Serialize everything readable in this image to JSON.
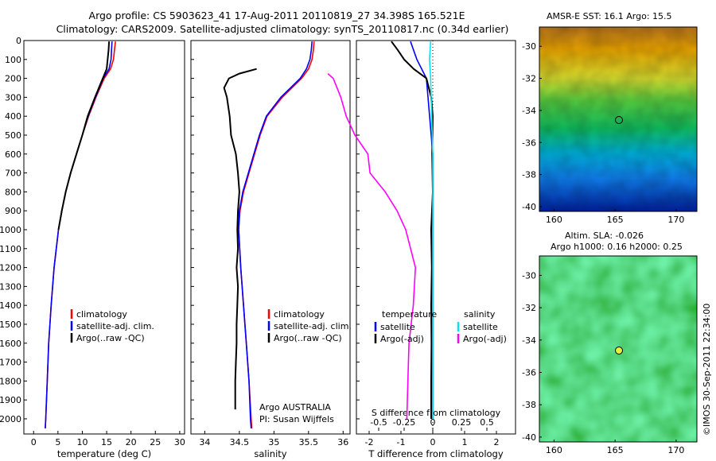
{
  "titles": {
    "line1": "Argo profile: CS 5903623_41 17-Aug-2011 20110819_27 34.398S 165.521E",
    "line2": "Climatology: CARS2009. Satellite-adjusted climatology: synTS_20110817.nc (0.34d earlier)"
  },
  "maps": {
    "sst_title": "AMSR-E SST: 16.1 Argo: 15.5",
    "sla_title1": "Altim. SLA: -0.026",
    "sla_title2": "Argo h1000: 0.16 h2000: 0.25",
    "yticks": [
      "-30",
      "-32",
      "-34",
      "-36",
      "-38",
      "-40"
    ],
    "xticks": [
      "160",
      "165",
      "170"
    ],
    "argo_lon": 165.521,
    "argo_lat": -34.398
  },
  "stamp": "©IMOS 30-Sep-2011 22:34:00",
  "annotations": {
    "float_owner": "Argo AUSTRALIA",
    "pi": "PI: Susan Wijffels",
    "s_diff_label": "S difference from climatology",
    "temperature_header": "temperature",
    "salinity_header": "salinity"
  },
  "chart_data": [
    {
      "type": "line",
      "xlabel": "temperature (deg C)",
      "ylabel": "",
      "xlim": [
        -2,
        31
      ],
      "ylim": [
        2080,
        0
      ],
      "xticks": [
        "0",
        "5",
        "10",
        "15",
        "20",
        "25",
        "30"
      ],
      "yticks": [
        "0",
        "100",
        "200",
        "300",
        "400",
        "500",
        "600",
        "700",
        "800",
        "900",
        "1000",
        "1100",
        "1200",
        "1300",
        "1400",
        "1500",
        "1600",
        "1700",
        "1800",
        "1900",
        "2000"
      ],
      "legend": [
        "climatology",
        "satellite-adj. clim.",
        "Argo(..raw -QC)"
      ],
      "legend_position": "lower-right",
      "series": [
        {
          "name": "climatology",
          "color": "#ff0000",
          "depth": [
            5,
            50,
            100,
            150,
            200,
            300,
            400,
            500,
            600,
            700,
            800,
            900,
            1000,
            1200,
            1400,
            1600,
            1800,
            2000,
            2050
          ],
          "values": [
            16.8,
            16.6,
            16.4,
            15.8,
            14.5,
            12.8,
            11.3,
            10.0,
            8.8,
            7.6,
            6.6,
            5.8,
            5.1,
            4.2,
            3.6,
            3.1,
            2.8,
            2.5,
            2.4
          ]
        },
        {
          "name": "satellite-adj. clim.",
          "color": "#0000ff",
          "depth": [
            5,
            50,
            100,
            150,
            200,
            300,
            400,
            500,
            600,
            700,
            800,
            900,
            1000,
            1200,
            1400,
            1600,
            1800,
            2000,
            2050
          ],
          "values": [
            16.1,
            16.0,
            15.9,
            15.5,
            14.3,
            12.7,
            11.2,
            10.0,
            8.8,
            7.6,
            6.6,
            5.8,
            5.1,
            4.2,
            3.6,
            3.1,
            2.8,
            2.5,
            2.4
          ]
        },
        {
          "name": "Argo(..raw -QC)",
          "color": "#000000",
          "depth": [
            5,
            50,
            100,
            150,
            200,
            300,
            400,
            500,
            600,
            700,
            800,
            900,
            1000
          ],
          "values": [
            15.5,
            15.4,
            15.2,
            15.0,
            14.2,
            12.6,
            11.1,
            10.0,
            8.8,
            7.6,
            6.6,
            5.8,
            5.1
          ]
        }
      ]
    },
    {
      "type": "line",
      "xlabel": "salinity",
      "ylabel": "",
      "xlim": [
        33.8,
        36.1
      ],
      "ylim": [
        2080,
        0
      ],
      "xticks": [
        "34",
        "34.5",
        "35",
        "35.5",
        "36"
      ],
      "legend": [
        "climatology",
        "satellite-adj. clim.",
        "Argo(..raw -QC)"
      ],
      "legend_position": "lower-right",
      "series": [
        {
          "name": "climatology",
          "color": "#ff0000",
          "depth": [
            5,
            50,
            100,
            150,
            200,
            300,
            400,
            500,
            600,
            700,
            800,
            900,
            1000,
            1200,
            1400,
            1600,
            1800,
            2000,
            2050
          ],
          "values": [
            35.58,
            35.57,
            35.55,
            35.5,
            35.4,
            35.12,
            34.9,
            34.8,
            34.72,
            34.64,
            34.56,
            34.51,
            34.49,
            34.52,
            34.56,
            34.6,
            34.64,
            34.67,
            34.68
          ]
        },
        {
          "name": "satellite-adj. clim.",
          "color": "#0000ff",
          "depth": [
            5,
            50,
            100,
            150,
            200,
            300,
            400,
            500,
            600,
            700,
            800,
            900,
            1000,
            1200,
            1400,
            1600,
            1800,
            2000,
            2050
          ],
          "values": [
            35.55,
            35.54,
            35.52,
            35.47,
            35.38,
            35.1,
            34.89,
            34.79,
            34.71,
            34.63,
            34.55,
            34.5,
            34.49,
            34.52,
            34.56,
            34.6,
            34.64,
            34.66,
            34.67
          ]
        },
        {
          "name": "Argo(..raw -QC)",
          "color": "#000000",
          "depth": [
            150,
            175,
            200,
            250,
            300,
            400,
            500,
            600,
            700,
            800,
            900,
            1000,
            1100,
            1200,
            1300,
            1400,
            1500,
            1600,
            1700,
            1800,
            1900,
            1950
          ],
          "values": [
            34.75,
            34.5,
            34.35,
            34.28,
            34.32,
            34.36,
            34.38,
            34.45,
            34.48,
            34.5,
            34.48,
            34.47,
            34.48,
            34.46,
            34.48,
            34.47,
            34.46,
            34.46,
            34.45,
            34.44,
            34.44,
            34.44
          ]
        }
      ]
    },
    {
      "type": "line",
      "xlabel": "T difference from climatology",
      "x2label": "S difference from climatology",
      "ylabel": "",
      "xlim": [
        -2.4,
        2.6
      ],
      "ylim": [
        2080,
        0
      ],
      "xticks": [
        "-2",
        "-1",
        "0",
        "1",
        "2"
      ],
      "x2ticks": [
        "-0.5",
        "-0.25",
        "0",
        "0.25",
        "0.5"
      ],
      "legend": [
        "satellite",
        "Argo(-adj)",
        "satellite",
        "Argo(-adj)"
      ],
      "legend_position": "lower-center",
      "series": [
        {
          "name": "satellite",
          "group": "temperature",
          "color": "#0000ff",
          "depth": [
            5,
            100,
            200,
            400,
            600,
            800,
            1000,
            1200,
            1400,
            1600,
            1800,
            2000
          ],
          "values": [
            -0.7,
            -0.5,
            -0.2,
            -0.1,
            0.0,
            0.0,
            0.0,
            0.0,
            0.0,
            0.0,
            0.0,
            0.0
          ]
        },
        {
          "name": "Argo(-adj)",
          "group": "temperature",
          "color": "#000000",
          "depth": [
            5,
            50,
            100,
            150,
            200,
            300,
            400,
            600,
            800,
            1000,
            1200,
            1400,
            1600,
            1800,
            2000
          ],
          "values": [
            -1.3,
            -1.1,
            -0.9,
            -0.6,
            -0.2,
            -0.05,
            0.0,
            -0.02,
            0.0,
            -0.05,
            -0.03,
            -0.05,
            -0.04,
            -0.05,
            -0.05
          ]
        },
        {
          "name": "satellite",
          "group": "salinity",
          "color": "#00e5ee",
          "depth": [
            5,
            100,
            200,
            400,
            600,
            800,
            1000,
            1200,
            1400,
            1600,
            1800,
            2000
          ],
          "values": [
            -0.02,
            -0.03,
            -0.02,
            -0.01,
            0.0,
            0.0,
            0.0,
            0.0,
            0.0,
            0.0,
            0.0,
            0.0
          ]
        },
        {
          "name": "Argo(-adj)",
          "group": "salinity",
          "color": "#ff00ff",
          "depth": [
            175,
            200,
            300,
            400,
            500,
            600,
            700,
            800,
            900,
            1000,
            1200,
            1400,
            1600,
            1800,
            2000
          ],
          "values": [
            -0.97,
            -0.92,
            -0.85,
            -0.8,
            -0.72,
            -0.6,
            -0.58,
            -0.44,
            -0.33,
            -0.25,
            -0.16,
            -0.18,
            -0.22,
            -0.23,
            -0.24
          ]
        }
      ]
    }
  ]
}
